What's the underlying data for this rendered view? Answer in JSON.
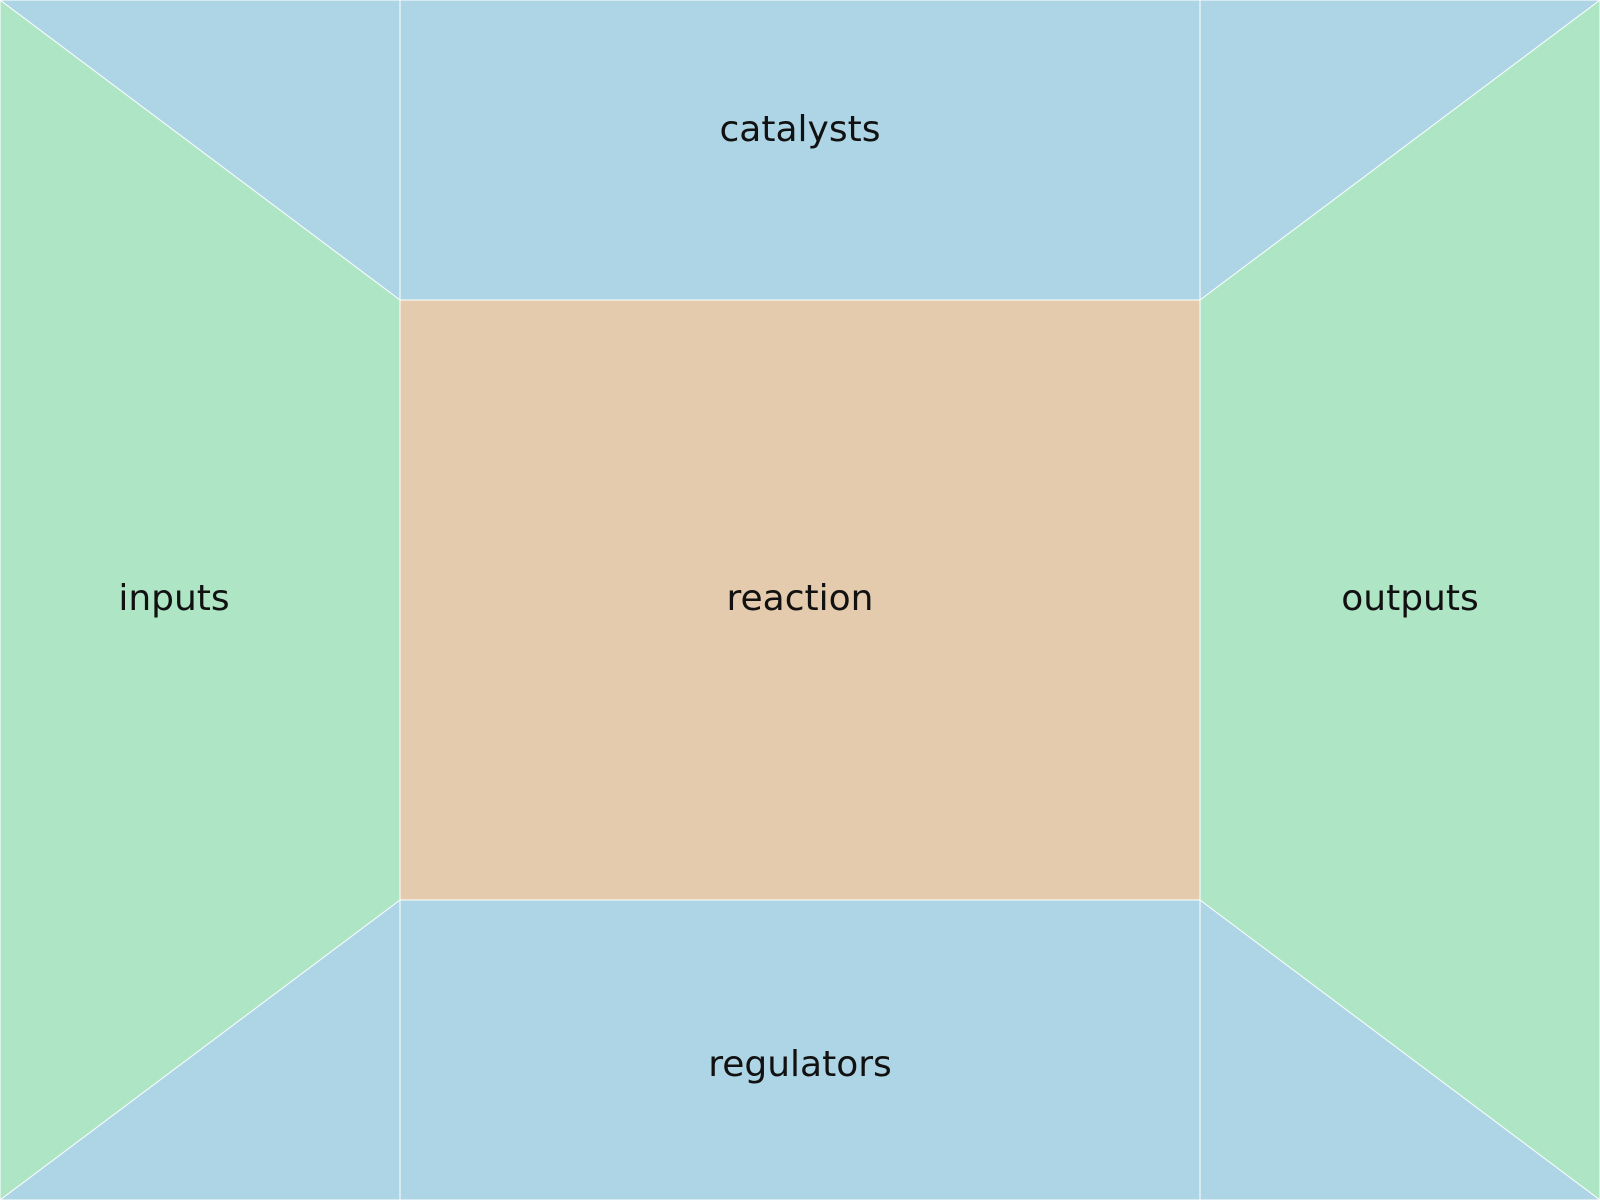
{
  "colors": {
    "blue": "#aed5e5",
    "green": "#ade5c5",
    "tan": "#e4cbad",
    "divider": "#ffffff"
  },
  "regions": {
    "top": {
      "label": "catalysts",
      "color": "blue"
    },
    "left": {
      "label": "inputs",
      "color": "green"
    },
    "center": {
      "label": "reaction",
      "color": "tan"
    },
    "right": {
      "label": "outputs",
      "color": "green"
    },
    "bottom": {
      "label": "regulators",
      "color": "blue"
    }
  }
}
